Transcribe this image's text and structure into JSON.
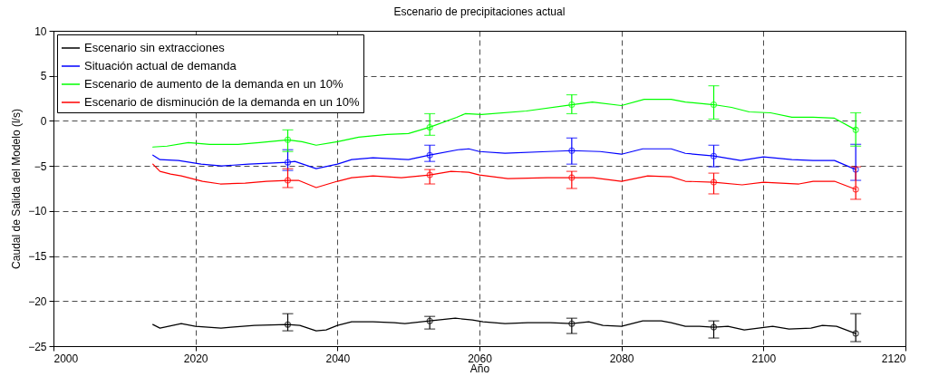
{
  "chart_data": {
    "type": "line",
    "title": "Escenario de precipitaciones actual",
    "xlabel": "Año",
    "ylabel": "Caudal de Salida del Modelo (l/s)",
    "xlim": [
      2000,
      2120
    ],
    "ylim": [
      -25,
      10
    ],
    "xticks": [
      2000,
      2020,
      2040,
      2060,
      2080,
      2100,
      2120
    ],
    "yticks": [
      -25,
      -20,
      -15,
      -10,
      -5,
      0,
      5,
      10
    ],
    "grid": true,
    "legend": "top left",
    "line_style": "solid",
    "series": [
      {
        "name": "Escenario sin extracciones",
        "color": "#000000",
        "x": [
          2014,
          2015,
          2018,
          2020,
          2023.6,
          2025,
          2028.3,
          2033,
          2034.7,
          2037,
          2038.4,
          2040,
          2042,
          2045,
          2048,
          2049.5,
          2053,
          2056.6,
          2059,
          2060.5,
          2063.6,
          2066.8,
          2070,
          2073,
          2075.4,
          2077.4,
          2080,
          2083,
          2085.6,
          2087,
          2089,
          2091,
          2093,
          2095,
          2097.3,
          2101.3,
          2103.6,
          2106.7,
          2108.3,
          2110.3,
          2113
        ],
        "values": [
          -22.6,
          -23.0,
          -22.5,
          -22.8,
          -23.0,
          -22.9,
          -22.7,
          -22.6,
          -22.7,
          -23.3,
          -23.2,
          -22.7,
          -22.3,
          -22.3,
          -22.4,
          -22.5,
          -22.2,
          -21.9,
          -22.1,
          -22.3,
          -22.5,
          -22.4,
          -22.4,
          -22.5,
          -22.3,
          -22.7,
          -22.8,
          -22.2,
          -22.2,
          -22.4,
          -22.8,
          -22.8,
          -22.9,
          -22.8,
          -23.2,
          -22.8,
          -23.1,
          -23.0,
          -22.7,
          -22.8,
          -23.6
        ]
      },
      {
        "name": "Situación actual de demanda",
        "color": "#0000ff",
        "x": [
          2014,
          2015,
          2017.6,
          2020.8,
          2023.7,
          2027.5,
          2033,
          2034,
          2037,
          2040,
          2042,
          2045,
          2050,
          2053,
          2057,
          2058.5,
          2060,
          2063.6,
          2069.6,
          2073,
          2077,
          2080,
          2083,
          2087,
          2089,
          2093,
          2096.8,
          2100,
          2104,
          2107,
          2110,
          2113
        ],
        "values": [
          -3.8,
          -4.3,
          -4.4,
          -4.8,
          -5.0,
          -4.8,
          -4.6,
          -4.5,
          -5.3,
          -4.8,
          -4.3,
          -4.1,
          -4.3,
          -3.8,
          -3.2,
          -3.1,
          -3.4,
          -3.6,
          -3.4,
          -3.3,
          -3.4,
          -3.7,
          -3.1,
          -3.1,
          -3.6,
          -3.9,
          -4.4,
          -4.0,
          -4.3,
          -4.4,
          -4.4,
          -5.4
        ]
      },
      {
        "name": "Escenario de aumento de la demanda en un 10%",
        "color": "#00ff00",
        "x": [
          2014,
          2016,
          2019,
          2022,
          2026,
          2029,
          2033,
          2035,
          2037,
          2040,
          2043,
          2047,
          2050,
          2053,
          2056.8,
          2058,
          2060.3,
          2066.6,
          2073,
          2075.9,
          2080,
          2083.2,
          2087,
          2089,
          2093,
          2095.5,
          2098,
          2101,
          2104,
          2107,
          2110,
          2113
        ],
        "values": [
          -2.9,
          -2.8,
          -2.4,
          -2.6,
          -2.6,
          -2.4,
          -2.1,
          -2.3,
          -2.7,
          -2.3,
          -1.8,
          -1.5,
          -1.4,
          -0.7,
          0.4,
          0.8,
          0.7,
          1.1,
          1.8,
          2.1,
          1.7,
          2.4,
          2.4,
          2.1,
          1.8,
          1.5,
          1.0,
          0.9,
          0.4,
          0.4,
          0.3,
          -1.0
        ]
      },
      {
        "name": "Escenario de disminución de la demanda en un 10%",
        "color": "#ff0000",
        "x": [
          2014,
          2015,
          2016.5,
          2018,
          2021,
          2023.5,
          2027,
          2030,
          2033,
          2034.5,
          2037,
          2040,
          2042,
          2045,
          2049,
          2053,
          2056,
          2058.5,
          2060,
          2064,
          2069.6,
          2073,
          2076,
          2080,
          2083.7,
          2087,
          2089,
          2093,
          2097,
          2100,
          2105,
          2107,
          2110,
          2113
        ],
        "values": [
          -4.8,
          -5.6,
          -5.9,
          -6.1,
          -6.7,
          -7.0,
          -6.9,
          -6.7,
          -6.6,
          -6.6,
          -7.4,
          -6.7,
          -6.3,
          -6.1,
          -6.3,
          -6.0,
          -5.6,
          -5.7,
          -6.0,
          -6.4,
          -6.3,
          -6.3,
          -6.3,
          -6.7,
          -6.1,
          -6.2,
          -6.7,
          -6.8,
          -7.1,
          -6.8,
          -7.0,
          -6.7,
          -6.7,
          -7.6
        ]
      },
      {
        "type": "scatter",
        "marker": "circle",
        "color": "#000000",
        "x": [
          2033,
          2053,
          2073,
          2093,
          2113
        ],
        "values": [
          -22.6,
          -22.2,
          -22.5,
          -22.9,
          -23.6
        ],
        "errors": [
          [
            -23.3,
            -21.4
          ],
          [
            -23.1,
            -21.7
          ],
          [
            -23.6,
            -21.9
          ],
          [
            -24.1,
            -22.2
          ],
          [
            -24.5,
            -21.4
          ]
        ]
      },
      {
        "type": "scatter",
        "marker": "circle",
        "color": "#0000ff",
        "x": [
          2033,
          2053,
          2073,
          2093,
          2113
        ],
        "values": [
          -4.6,
          -3.8,
          -3.3,
          -3.9,
          -5.4
        ],
        "errors": [
          [
            -5.5,
            -3.2
          ],
          [
            -4.5,
            -2.7
          ],
          [
            -4.8,
            -1.9
          ],
          [
            -5.1,
            -2.7
          ],
          [
            -6.6,
            -2.6
          ]
        ]
      },
      {
        "type": "scatter",
        "marker": "circle",
        "color": "#00ff00",
        "x": [
          2033,
          2053,
          2073,
          2093,
          2113
        ],
        "values": [
          -2.1,
          -0.7,
          1.8,
          1.8,
          -1.0
        ],
        "errors": [
          [
            -3.4,
            -1.0
          ],
          [
            -1.6,
            0.8
          ],
          [
            0.8,
            2.9
          ],
          [
            0.2,
            3.9
          ],
          [
            -2.8,
            0.9
          ]
        ]
      },
      {
        "type": "scatter",
        "marker": "circle",
        "color": "#ff0000",
        "x": [
          2033,
          2053,
          2073,
          2093,
          2113
        ],
        "values": [
          -6.6,
          -6.0,
          -6.3,
          -6.8,
          -7.6
        ],
        "errors": [
          [
            -7.4,
            -5.3
          ],
          [
            -7.0,
            -5.4
          ],
          [
            -7.5,
            -5.6
          ],
          [
            -8.1,
            -5.8
          ],
          [
            -8.7,
            -5.1
          ]
        ]
      }
    ]
  }
}
